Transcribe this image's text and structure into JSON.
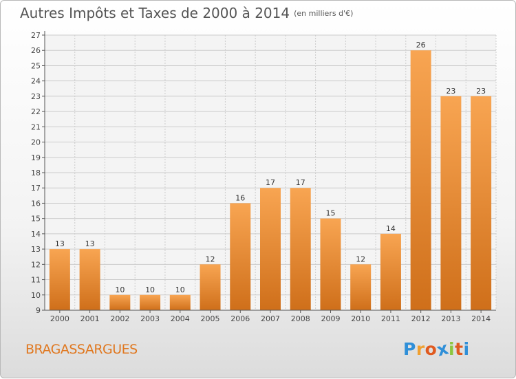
{
  "header": {
    "title": "Autres Impôts et Taxes de 2000 à 2014",
    "unit": "(en milliers d'€)"
  },
  "footer": {
    "commune": "BRAGASSARGUES"
  },
  "logo": {
    "letters": [
      "P",
      "r",
      "o",
      "x",
      "i",
      "t",
      "i"
    ],
    "colors": [
      "#2f8fd8",
      "#f0a030",
      "#e05a20",
      "#2f8fd8",
      "#8cc63e",
      "#e05a20",
      "#2f8fd8"
    ]
  },
  "colors": {
    "bar_top": "#f8a552",
    "bar_bottom": "#cf6f1a",
    "axis": "#555555",
    "grid": "#cccccc",
    "plot_bg": "#f4f4f4"
  },
  "chart_data": {
    "type": "bar",
    "title": "Autres Impôts et Taxes de 2000 à 2014",
    "subtitle": "(en milliers d'€)",
    "categories": [
      "2000",
      "2001",
      "2002",
      "2003",
      "2004",
      "2005",
      "2006",
      "2007",
      "2008",
      "2009",
      "2010",
      "2011",
      "2012",
      "2013",
      "2014"
    ],
    "values": [
      13,
      13,
      10,
      10,
      10,
      12,
      16,
      17,
      17,
      15,
      12,
      14,
      26,
      23,
      23
    ],
    "ylim": [
      9,
      27
    ],
    "yticks": [
      9,
      10,
      11,
      12,
      13,
      14,
      15,
      16,
      17,
      18,
      19,
      20,
      21,
      22,
      23,
      24,
      25,
      26,
      27
    ],
    "grid": true,
    "data_labels": true
  }
}
